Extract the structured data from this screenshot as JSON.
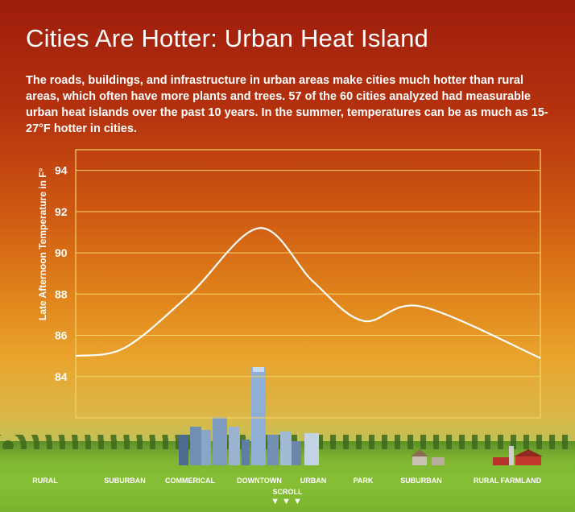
{
  "title": "Cities Are Hotter: Urban Heat Island",
  "description": {
    "part1": "The roads, buildings, and infrastructure in urban areas make cities much hotter than rural areas, which often have more plants and trees. ",
    "highlight": "57 of the 60 cities",
    "part2": " analyzed had measurable urban heat islands over the past 10 years. In the summer, temperatures can be as much as 15-27°F hotter in cities."
  },
  "scroll_label": "SCROLL",
  "scroll_arrows": "▼▼▼",
  "colors": {
    "line": "#ffffff",
    "grid": "#f3d36a",
    "frame": "#f3d36a"
  },
  "chart_data": {
    "type": "line",
    "ylabel": "Late Afternoon Temperature in F°",
    "ylim": [
      82,
      95
    ],
    "yticks": [
      84,
      86,
      88,
      90,
      92,
      94
    ],
    "grid": true,
    "categories": [
      "RURAL",
      "SUBURBAN",
      "COMMERICAL",
      "DOWNTOWN",
      "URBAN",
      "PARK",
      "SUBURBAN",
      "RURAL FARMLAND"
    ],
    "series": [
      {
        "values": [
          85.0,
          85.4,
          88.0,
          91.2,
          88.6,
          86.7,
          87.4,
          84.9
        ]
      }
    ]
  }
}
